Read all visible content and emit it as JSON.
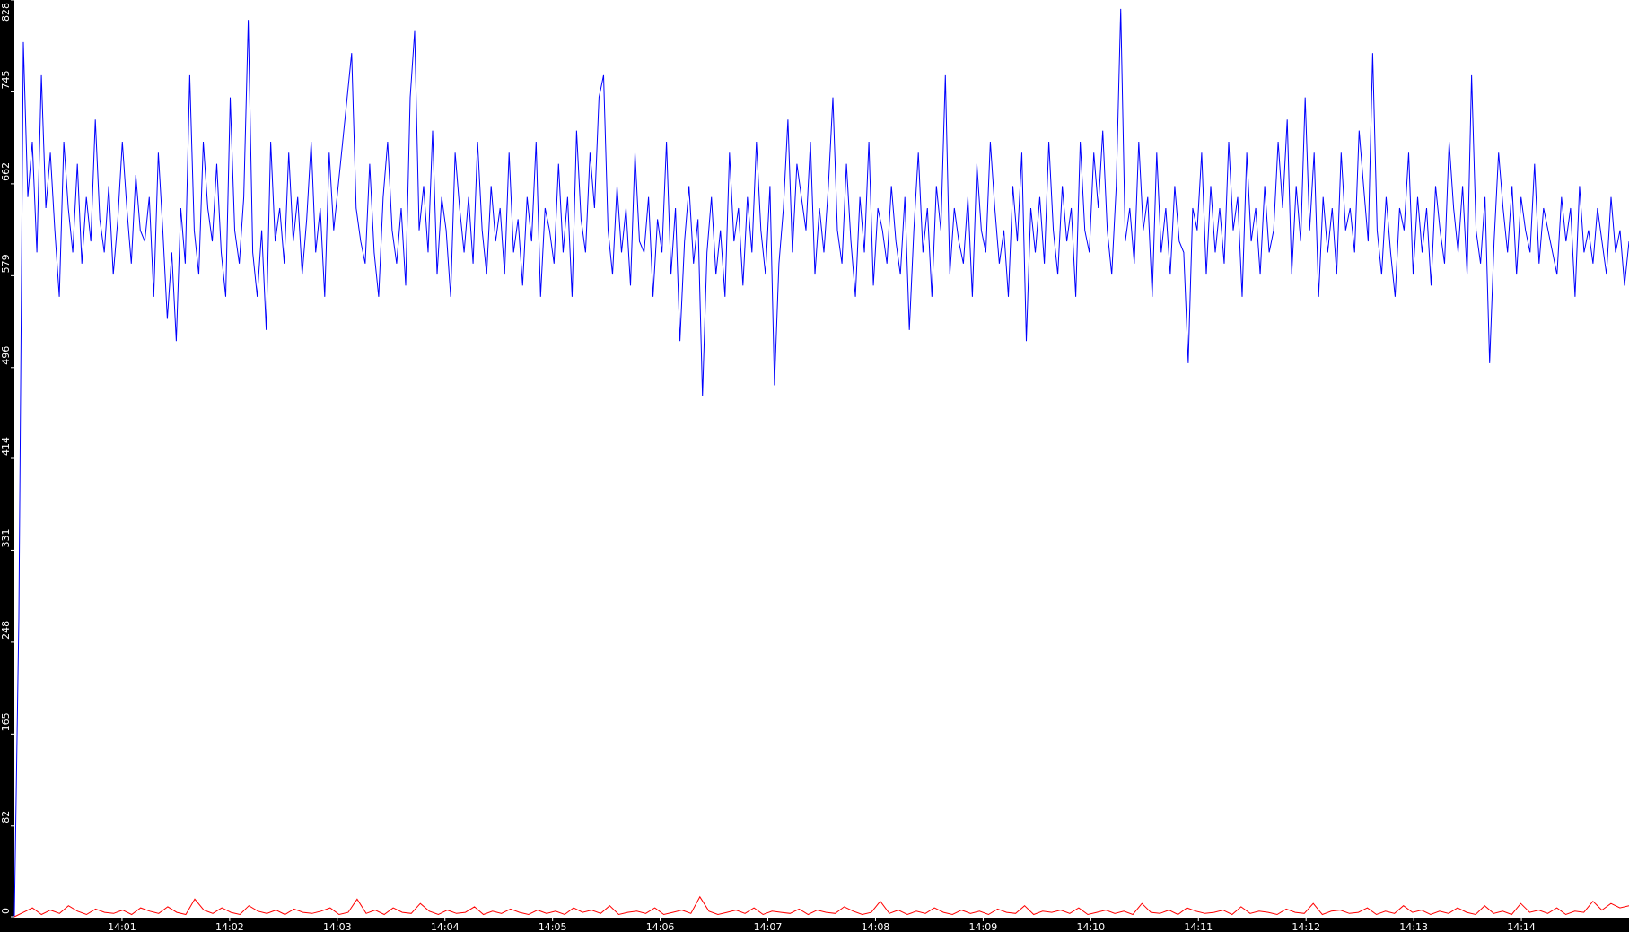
{
  "chart_data": {
    "type": "line",
    "grid": false,
    "background": "#ffffff",
    "axis_background": "#000000",
    "xlim": [
      "14:00:00",
      "14:15:00"
    ],
    "ylim": [
      0,
      828
    ],
    "y_ticks": [
      "0",
      "82",
      "165",
      "248",
      "331",
      "414",
      "496",
      "579",
      "662",
      "745",
      "828"
    ],
    "x_ticks": [
      "14:01",
      "14:02",
      "14:03",
      "14:04",
      "14:05",
      "14:06",
      "14:07",
      "14:08",
      "14:09",
      "14:10",
      "14:11",
      "14:12",
      "14:13",
      "14:14"
    ],
    "series": [
      {
        "color": "#0000ff",
        "values": [
          0,
          270,
          790,
          650,
          700,
          600,
          760,
          640,
          690,
          620,
          560,
          700,
          640,
          600,
          680,
          590,
          650,
          610,
          720,
          630,
          600,
          660,
          580,
          630,
          700,
          640,
          590,
          670,
          620,
          610,
          650,
          560,
          690,
          620,
          540,
          600,
          520,
          640,
          590,
          760,
          620,
          580,
          700,
          640,
          610,
          680,
          600,
          560,
          740,
          620,
          590,
          650,
          810,
          600,
          560,
          620,
          530,
          700,
          610,
          640,
          590,
          690,
          610,
          650,
          580,
          630,
          700,
          600,
          640,
          560,
          690,
          620,
          660,
          700,
          740,
          780,
          640,
          610,
          590,
          680,
          600,
          560,
          650,
          700,
          620,
          590,
          640,
          570,
          740,
          800,
          620,
          660,
          600,
          710,
          580,
          650,
          620,
          560,
          690,
          640,
          600,
          650,
          590,
          700,
          620,
          580,
          660,
          610,
          640,
          580,
          690,
          600,
          630,
          570,
          650,
          610,
          700,
          560,
          640,
          620,
          590,
          680,
          600,
          650,
          560,
          710,
          630,
          600,
          690,
          640,
          740,
          760,
          620,
          580,
          660,
          600,
          640,
          570,
          690,
          610,
          600,
          650,
          560,
          630,
          600,
          700,
          580,
          640,
          520,
          610,
          660,
          590,
          630,
          470,
          600,
          650,
          580,
          620,
          560,
          690,
          610,
          640,
          570,
          650,
          600,
          700,
          620,
          580,
          660,
          480,
          590,
          640,
          720,
          600,
          680,
          650,
          620,
          700,
          580,
          640,
          600,
          660,
          740,
          620,
          590,
          680,
          610,
          560,
          650,
          600,
          700,
          570,
          640,
          620,
          590,
          660,
          610,
          580,
          650,
          530,
          620,
          690,
          600,
          640,
          560,
          660,
          620,
          760,
          580,
          640,
          610,
          590,
          650,
          560,
          680,
          620,
          600,
          700,
          640,
          590,
          620,
          560,
          660,
          610,
          690,
          520,
          640,
          600,
          650,
          590,
          700,
          620,
          580,
          660,
          610,
          640,
          560,
          700,
          620,
          600,
          690,
          640,
          710,
          620,
          580,
          660,
          820,
          610,
          640,
          590,
          700,
          620,
          650,
          560,
          690,
          600,
          640,
          580,
          660,
          610,
          600,
          500,
          640,
          620,
          690,
          580,
          660,
          600,
          640,
          590,
          700,
          620,
          650,
          560,
          690,
          610,
          640,
          580,
          660,
          600,
          620,
          700,
          640,
          720,
          580,
          660,
          610,
          740,
          620,
          690,
          560,
          650,
          600,
          640,
          580,
          690,
          620,
          640,
          600,
          710,
          660,
          610,
          780,
          620,
          580,
          650,
          600,
          560,
          640,
          620,
          690,
          580,
          650,
          600,
          640,
          570,
          660,
          620,
          590,
          700,
          640,
          600,
          660,
          580,
          760,
          620,
          590,
          650,
          500,
          610,
          690,
          640,
          600,
          660,
          580,
          650,
          620,
          600,
          680,
          590,
          640,
          620,
          600,
          580,
          650,
          610,
          640,
          560,
          660,
          600,
          620,
          590,
          640,
          610,
          580,
          650,
          600,
          620,
          570,
          610
        ]
      },
      {
        "color": "#ff0000",
        "values": [
          0,
          4,
          8,
          2,
          6,
          3,
          10,
          5,
          2,
          7,
          4,
          3,
          6,
          2,
          8,
          5,
          3,
          9,
          4,
          2,
          16,
          6,
          3,
          8,
          4,
          2,
          10,
          5,
          3,
          6,
          2,
          7,
          4,
          3,
          5,
          8,
          2,
          4,
          16,
          3,
          6,
          2,
          8,
          4,
          3,
          12,
          5,
          2,
          6,
          3,
          4,
          9,
          2,
          5,
          3,
          7,
          4,
          2,
          6,
          3,
          5,
          2,
          8,
          4,
          6,
          3,
          10,
          2,
          4,
          5,
          3,
          8,
          2,
          4,
          6,
          3,
          18,
          5,
          2,
          4,
          6,
          3,
          8,
          2,
          5,
          4,
          3,
          7,
          2,
          6,
          4,
          3,
          9,
          5,
          2,
          4,
          14,
          3,
          6,
          2,
          5,
          3,
          8,
          4,
          2,
          6,
          3,
          5,
          2,
          7,
          4,
          3,
          10,
          2,
          5,
          4,
          6,
          3,
          8,
          2,
          4,
          6,
          3,
          5,
          2,
          12,
          4,
          3,
          6,
          2,
          8,
          5,
          3,
          4,
          6,
          2,
          9,
          3,
          5,
          4,
          2,
          7,
          4,
          3,
          12,
          2,
          5,
          6,
          3,
          4,
          8,
          2,
          5,
          3,
          10,
          4,
          6,
          2,
          5,
          3,
          8,
          4,
          2,
          10,
          3,
          5,
          2,
          12,
          4,
          6,
          3,
          8,
          2,
          5,
          4,
          14,
          6,
          12,
          8,
          10
        ]
      }
    ]
  }
}
